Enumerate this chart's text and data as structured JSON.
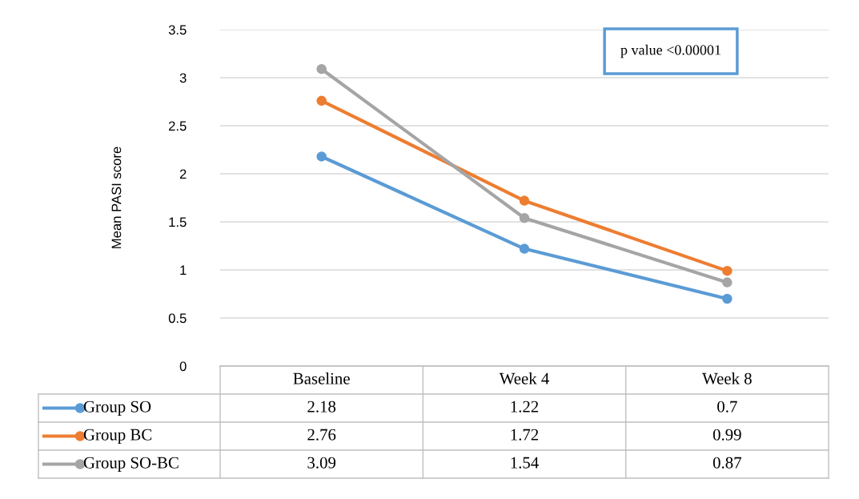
{
  "chart_data": {
    "type": "line",
    "ylabel": "Mean PASI score",
    "categories": [
      "Baseline",
      "Week 4",
      "Week 8"
    ],
    "series": [
      {
        "name": "Group SO",
        "color": "#5b9bd5",
        "values": [
          2.18,
          1.22,
          0.7
        ]
      },
      {
        "name": "Group BC",
        "color": "#ed7d31",
        "values": [
          2.76,
          1.72,
          0.99
        ]
      },
      {
        "name": "Group SO-BC",
        "color": "#a5a5a5",
        "values": [
          3.09,
          1.54,
          0.87
        ]
      }
    ],
    "ylim": [
      0,
      3.5
    ],
    "yticks": [
      0,
      0.5,
      1,
      1.5,
      2,
      2.5,
      3,
      3.5
    ],
    "grid": "y",
    "legend": "bottom",
    "marker": "circle",
    "line_style": "solid",
    "data_labels": true,
    "annotations": [
      "p value <0.00001"
    ]
  }
}
